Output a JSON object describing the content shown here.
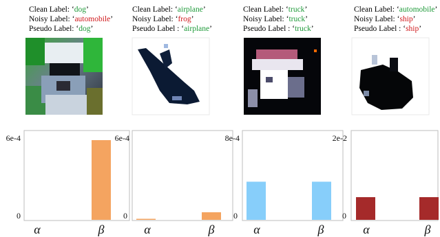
{
  "panels": [
    {
      "labels": [
        {
          "prefix": "Clean Label: ",
          "value": "dog",
          "status": "correct"
        },
        {
          "prefix": "Noisy Label: ",
          "value": "automobile",
          "status": "wrong"
        },
        {
          "prefix": "Pseudo Label: ",
          "value": "dog",
          "status": "correct"
        }
      ],
      "image": "dog-image"
    },
    {
      "labels": [
        {
          "prefix": "Clean Label:  ",
          "value": "airplane",
          "status": "correct"
        },
        {
          "prefix": "Noisy Label: ",
          "value": "frog",
          "status": "wrong"
        },
        {
          "prefix": "Pseudo Label : ",
          "value": "airplane",
          "status": "correct"
        }
      ],
      "image": "airplane-image"
    },
    {
      "labels": [
        {
          "prefix": "Clean Label:  ",
          "value": "truck",
          "status": "correct"
        },
        {
          "prefix": "Noisy Label: ",
          "value": "truck",
          "status": "correct"
        },
        {
          "prefix": "Pseudo Label : ",
          "value": "truck",
          "status": "correct"
        }
      ],
      "image": "truck-image"
    },
    {
      "labels": [
        {
          "prefix": "Clean Label:  ",
          "value": "automobile",
          "status": "correct"
        },
        {
          "prefix": "Noisy Label: ",
          "value": "ship",
          "status": "wrong"
        },
        {
          "prefix": "Pseudo Label : ",
          "value": "ship",
          "status": "wrong"
        }
      ],
      "image": "ship-image"
    }
  ],
  "colors": {
    "correct": "#1f9a3a",
    "wrong": "#d0181b"
  },
  "chart_data": [
    {
      "type": "bar",
      "categories": [
        "α",
        "β"
      ],
      "values": [
        0,
        0.00058
      ],
      "ylim": [
        0,
        0.0006
      ],
      "yticks": [
        "0",
        "6e-4"
      ],
      "color": "#f4a460"
    },
    {
      "type": "bar",
      "categories": [
        "α",
        "β"
      ],
      "values": [
        2.5e-06,
        5.5e-05
      ],
      "ylim": [
        0,
        0.0006
      ],
      "yticks": [
        "0",
        "6e-4"
      ],
      "color": "#f4a460"
    },
    {
      "type": "bar",
      "categories": [
        "α",
        "β"
      ],
      "values": [
        0.00037,
        0.00037
      ],
      "ylim": [
        0,
        0.0008
      ],
      "yticks": [
        "0",
        "8e-4"
      ],
      "color": "#87cefa"
    },
    {
      "type": "bar",
      "categories": [
        "α",
        "β"
      ],
      "values": [
        0.0055,
        0.0055
      ],
      "ylim": [
        0,
        0.02
      ],
      "yticks": [
        "0",
        "2e-2"
      ],
      "color": "#a52a2a"
    }
  ]
}
